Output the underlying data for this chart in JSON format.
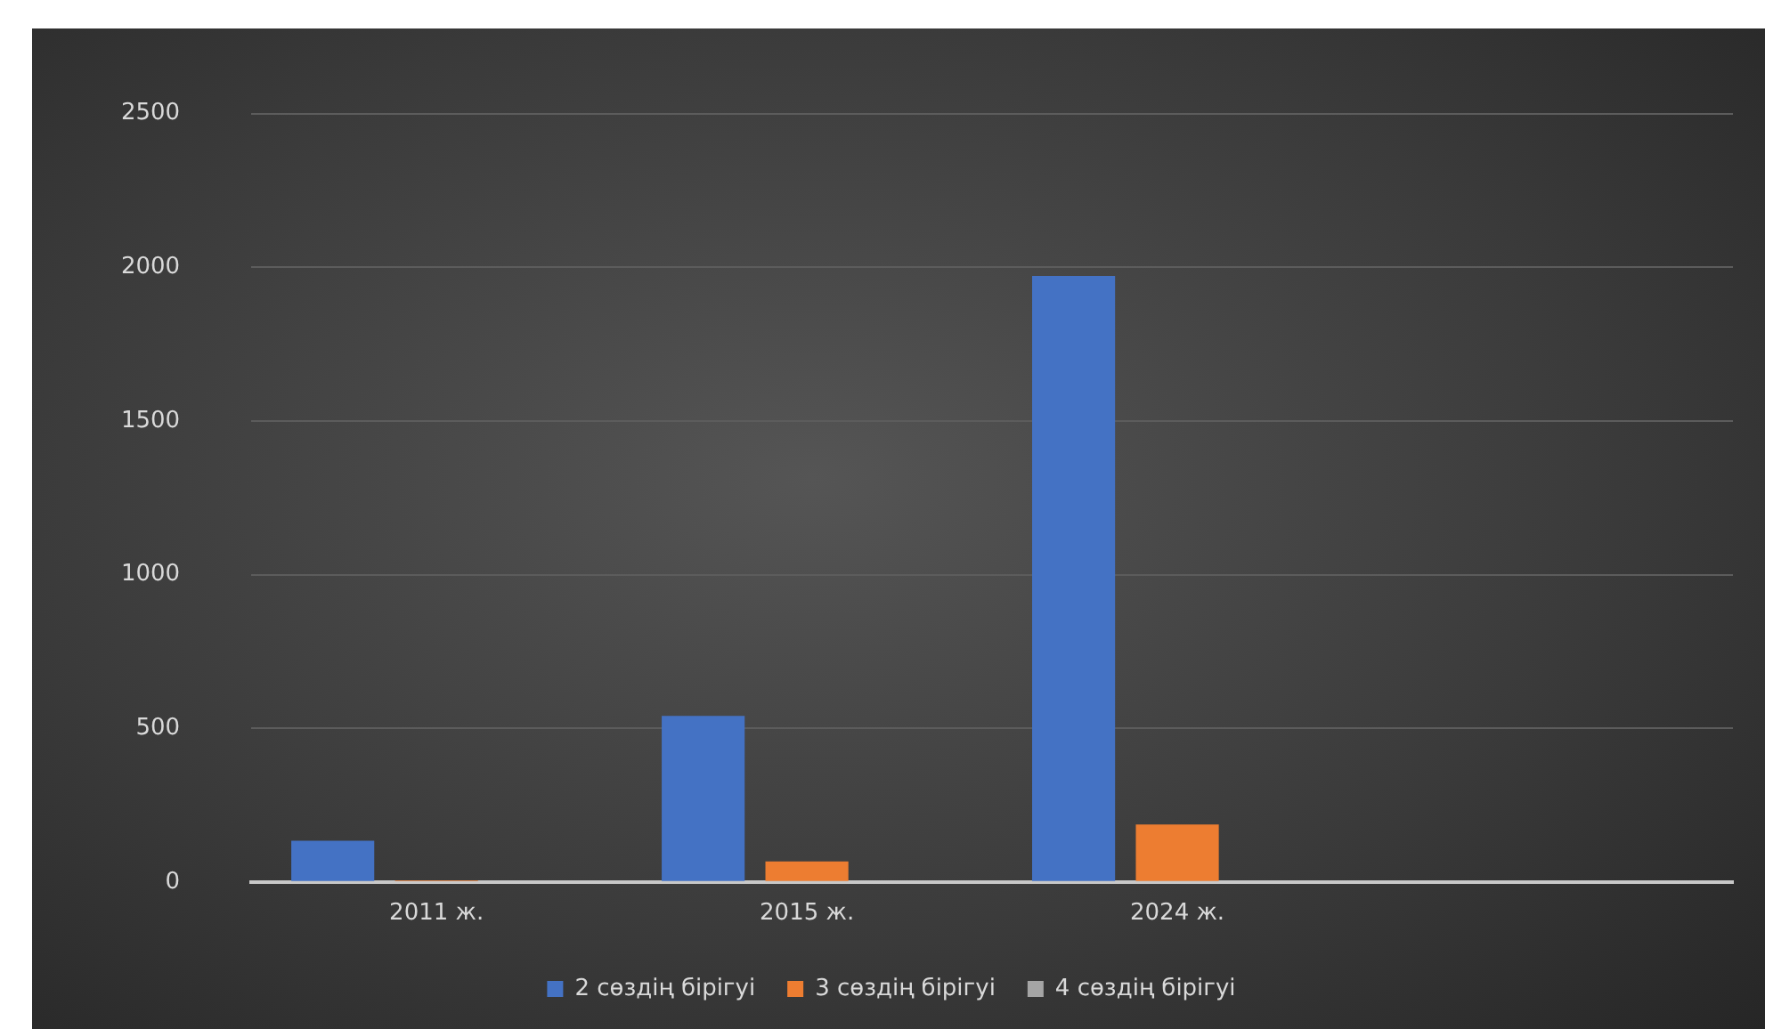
{
  "chart_data": {
    "type": "bar",
    "categories": [
      "2011 ж.",
      "2015 ж.",
      "2024 ж.",
      null
    ],
    "series": [
      {
        "name": "2 сөздің бірігуі",
        "color": "#4472c4",
        "values": [
          134,
          540,
          1972,
          null
        ]
      },
      {
        "name": "3 сөздің бірігуі",
        "color": "#ed7d31",
        "values": [
          5,
          67,
          187,
          null
        ]
      },
      {
        "name": "4 сөздің бірігуі",
        "color": "#a5a5a5",
        "values": [
          0,
          null,
          3,
          null
        ]
      }
    ],
    "ylim": [
      0,
      2500
    ],
    "yticks": [
      0,
      500,
      1000,
      1500,
      2000,
      2500
    ],
    "grid": "y",
    "legend": "bottom"
  }
}
